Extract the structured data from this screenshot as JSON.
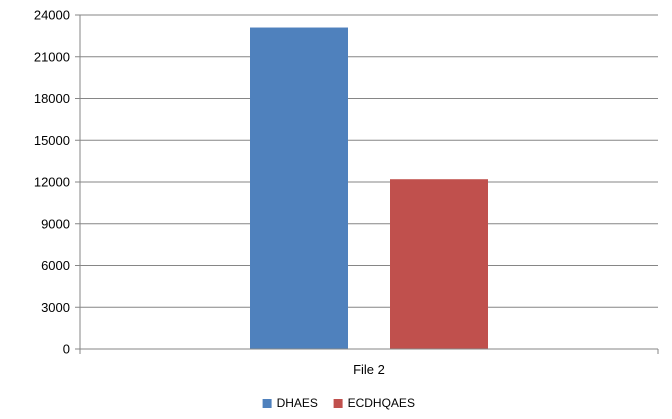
{
  "chart_data": {
    "type": "bar",
    "title": "",
    "xlabel": "",
    "ylabel": "",
    "categories": [
      "File 2"
    ],
    "series": [
      {
        "name": "DHAES",
        "values": [
          23100
        ],
        "color": "#4F81BD"
      },
      {
        "name": "ECDHQAES",
        "values": [
          12200
        ],
        "color": "#C0504D"
      }
    ],
    "ylim": [
      0,
      24000
    ],
    "yticks": [
      0,
      3000,
      6000,
      9000,
      12000,
      15000,
      18000,
      21000,
      24000
    ],
    "grid": true,
    "legend_position": "bottom"
  }
}
